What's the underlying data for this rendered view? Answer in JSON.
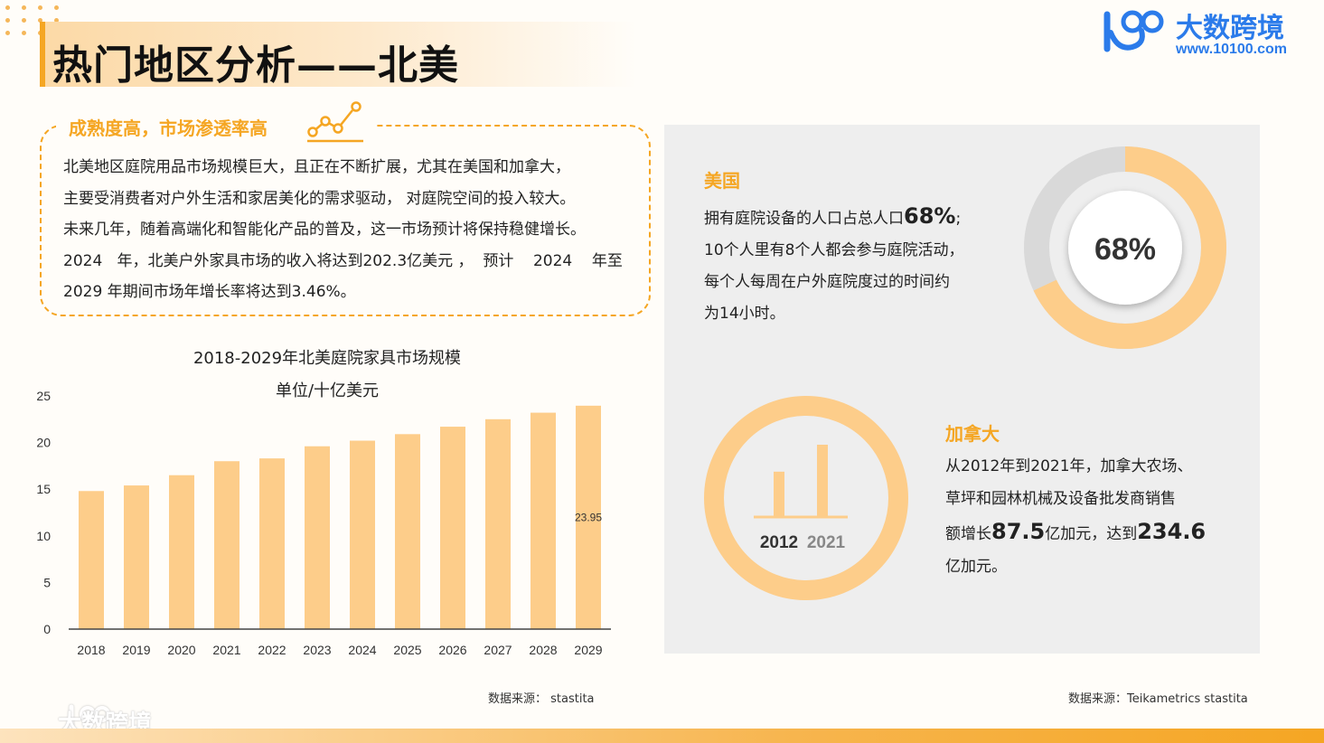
{
  "header": {
    "title": "热门地区分析——北美",
    "logo_name": "大数跨境",
    "logo_url": "www.10100.com"
  },
  "colors": {
    "accent": "#f5a623",
    "bar": "#fdcd8a",
    "panel": "#eeeeee",
    "brand": "#2b7bea"
  },
  "intro": {
    "heading": "成熟度高，市场渗透率高",
    "icon": "trend-line-icon",
    "lines": [
      "北美地区庭院用品市场规模巨大，且正在不断扩展，尤其在美国和加拿大，",
      "主要受消费者对户外生活和家居美化的需求驱动， 对庭院空间的投入较大。",
      "未来几年，随着高端化和智能化产品的普及，这一市场预计将保持稳健增长。",
      "2024   年，北美户外家具市场的收入将达到202.3亿美元 ，  预计    2024    年至",
      "2029 年期间市场年增长率将达到3.46%。"
    ]
  },
  "chart_data": {
    "type": "bar",
    "title": "2018-2029年北美庭院家具市场规模",
    "subtitle": "单位/十亿美元",
    "categories": [
      "2018",
      "2019",
      "2020",
      "2021",
      "2022",
      "2023",
      "2024",
      "2025",
      "2026",
      "2027",
      "2028",
      "2029"
    ],
    "values": [
      14.8,
      15.4,
      16.5,
      18.0,
      18.3,
      19.6,
      20.2,
      20.9,
      21.7,
      22.5,
      23.2,
      23.95
    ],
    "data_labels": {
      "2029": "23.95"
    },
    "yticks": [
      "0",
      "5",
      "10",
      "15",
      "20",
      "25"
    ],
    "ylim": [
      0,
      25
    ],
    "grid": false,
    "legend": "none"
  },
  "source_left": "数据来源： stastita",
  "usa": {
    "label": "美国",
    "line1_prefix": "拥有庭院设备的人口占总人口",
    "line1_value": "68%",
    "line1_suffix": ";",
    "line2": "10个人里有8个人都会参与庭院活动，",
    "line3": "每个人每周在户外庭院度过的时间约",
    "line4": "为14小时。",
    "donut_label": "68%",
    "donut_fraction": 0.68
  },
  "canada": {
    "label": "加拿大",
    "line1": "从2012年到2021年，加拿大农场、",
    "line2": "草坪和园林机械及设备批发商销售",
    "line3_prefix": "额增长",
    "line3_value1": "87.5",
    "line3_mid": "亿加元，达到",
    "line3_value2": "234.6",
    "line4": "亿加元。",
    "year_start": "2012",
    "year_end": "2021",
    "bar_start_value": 147.1,
    "bar_end_value": 234.6
  },
  "source_right": "数据来源：Teikametrics  stastita",
  "watermark": "大数跨境"
}
